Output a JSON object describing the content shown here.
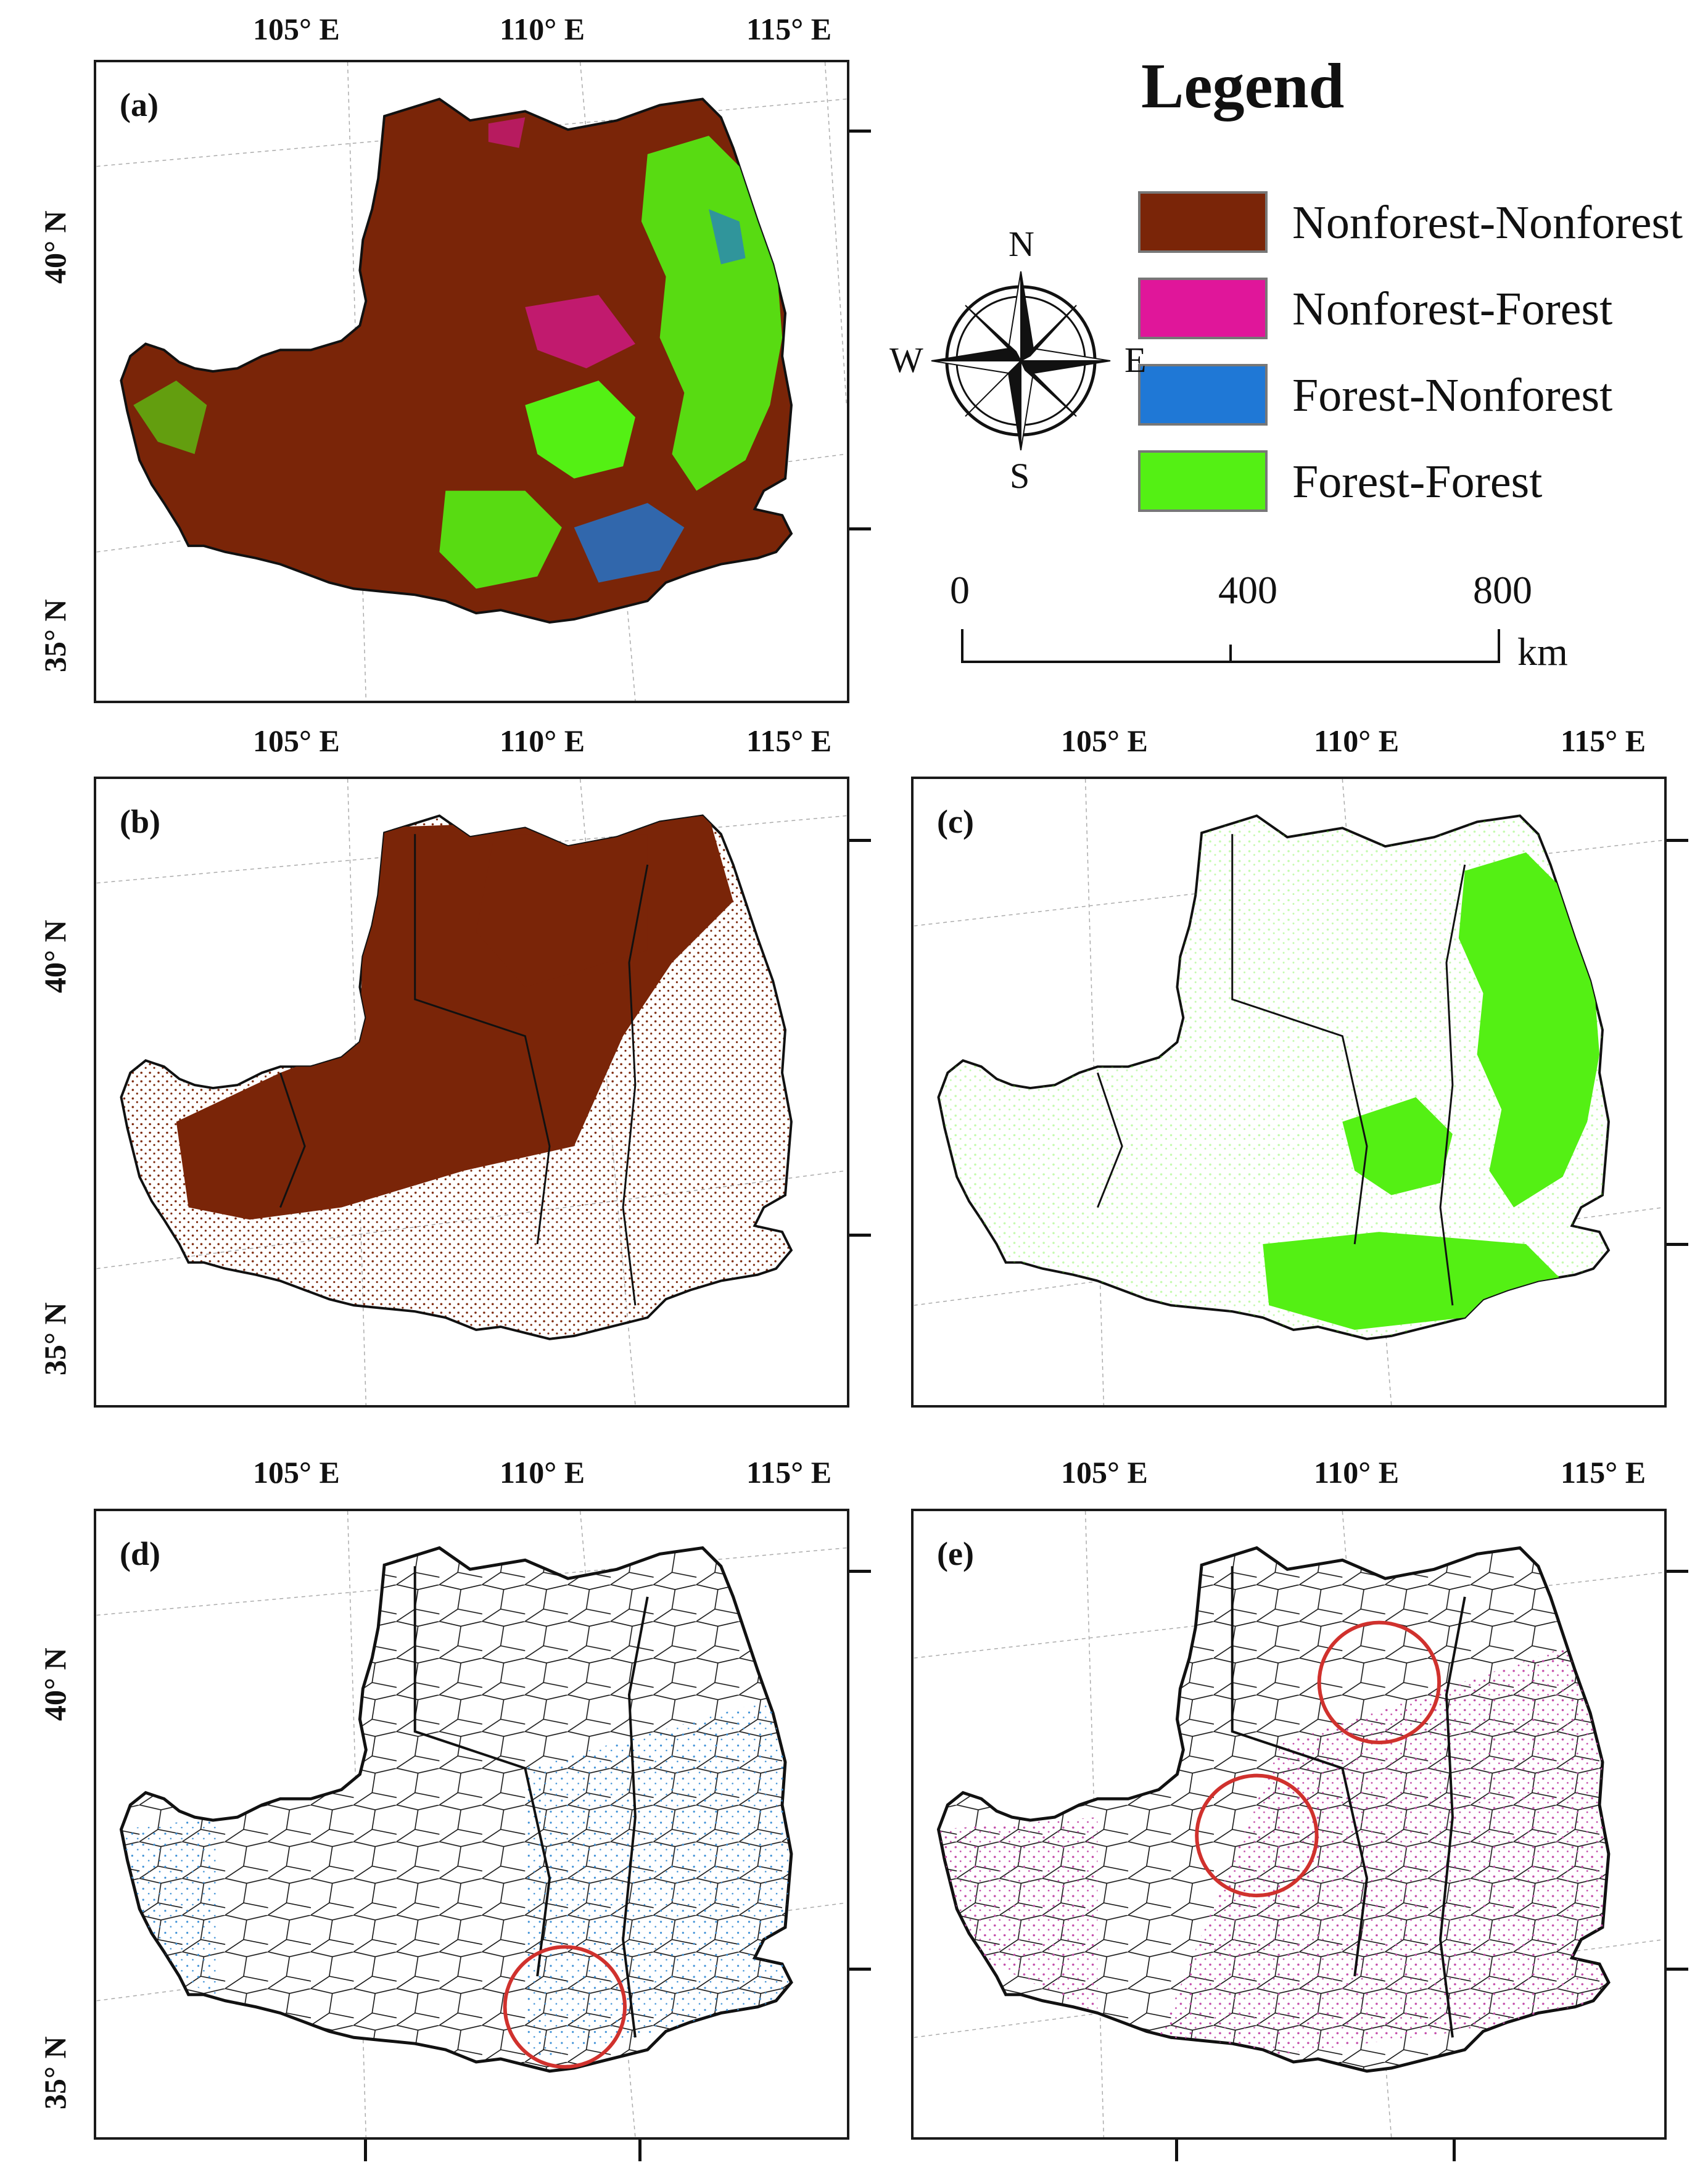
{
  "legend": {
    "title": "Legend",
    "items": [
      {
        "label": "Nonforest-Nonforest",
        "color": "#7a2508"
      },
      {
        "label": "Nonforest-Forest",
        "color": "#e0169a"
      },
      {
        "label": "Forest-Nonforest",
        "color": "#1f78d6"
      },
      {
        "label": "Forest-Forest",
        "color": "#54f014"
      }
    ]
  },
  "compass": {
    "n": "N",
    "s": "S",
    "e": "E",
    "w": "W",
    "icon": "compass-rose-icon"
  },
  "scalebar": {
    "ticks": [
      "0",
      "400",
      "800"
    ],
    "unit": "km"
  },
  "axes": {
    "lon": [
      "105° E",
      "110° E",
      "115° E"
    ],
    "lat": [
      "40° N",
      "35° N"
    ]
  },
  "panels": [
    {
      "id": "a",
      "label": "(a)",
      "content": "transition map",
      "boundaries": "none"
    },
    {
      "id": "b",
      "label": "(b)",
      "content": "Nonforest-Nonforest",
      "boundaries": "provinces"
    },
    {
      "id": "c",
      "label": "(c)",
      "content": "Forest-Forest",
      "boundaries": "provinces"
    },
    {
      "id": "d",
      "label": "(d)",
      "content": "Forest-Nonforest",
      "boundaries": "counties",
      "highlight_circles": 1
    },
    {
      "id": "e",
      "label": "(e)",
      "content": "Nonforest-Forest",
      "boundaries": "counties",
      "highlight_circles": 2
    }
  ],
  "colors": {
    "highlight_circle": "#d0312d",
    "boundary": "#111111"
  }
}
